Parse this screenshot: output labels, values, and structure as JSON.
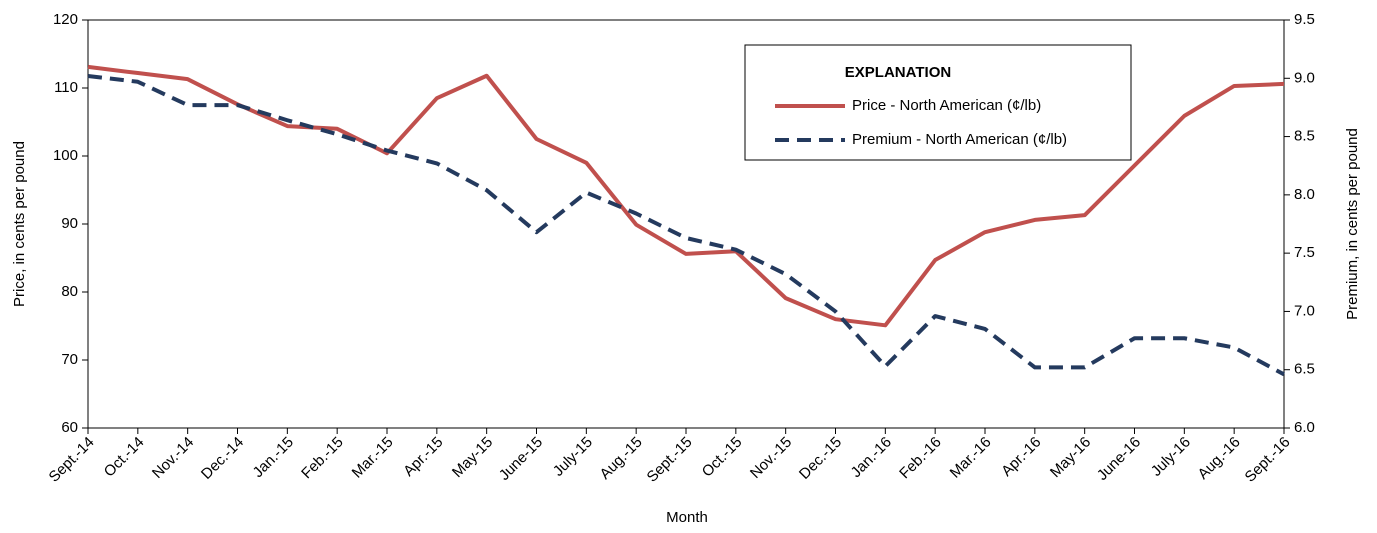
{
  "chart_data": {
    "type": "line",
    "x_label": "Month",
    "y_label": "Price, in cents per pound",
    "y2_label": "Premium, in cents per pound",
    "legend_title": "EXPLANATION",
    "legend": "upper right",
    "categories": [
      "Sept.-14",
      "Oct.-14",
      "Nov.-14",
      "Dec.-14",
      "Jan.-15",
      "Feb.-15",
      "Mar.-15",
      "Apr.-15",
      "May-15",
      "June-15",
      "July-15",
      "Aug.-15",
      "Sept.-15",
      "Oct.-15",
      "Nov.-15",
      "Dec.-15",
      "Jan.-16",
      "Feb.-16",
      "Mar.-16",
      "Apr.-16",
      "May-16",
      "June-16",
      "July-16",
      "Aug.-16",
      "Sept.-16"
    ],
    "series": [
      {
        "name": "Price - North American (¢/lb)",
        "color": "#c0504d",
        "dash": false,
        "values": [
          113.1,
          112.2,
          111.3,
          107.6,
          104.4,
          104.0,
          100.4,
          108.5,
          111.8,
          102.5,
          99.0,
          89.9,
          85.6,
          86.0,
          79.1,
          76.0,
          75.1,
          84.7,
          88.8,
          90.6,
          91.3,
          98.6,
          105.9,
          110.3,
          110.6
        ]
      },
      {
        "name": "Premium - North American (¢/lb)",
        "color": "#243a5e",
        "dash": true,
        "axis": "y2",
        "values": [
          9.02,
          8.97,
          8.77,
          8.77,
          8.64,
          8.52,
          8.38,
          8.27,
          8.04,
          7.68,
          8.02,
          7.84,
          7.63,
          7.53,
          7.32,
          7.0,
          6.53,
          6.96,
          6.85,
          6.52,
          6.52,
          6.77,
          6.77,
          6.69,
          6.46
        ]
      }
    ],
    "ylim": [
      60,
      120
    ],
    "yticks": [
      60,
      70,
      80,
      90,
      100,
      110,
      120
    ],
    "y2lim": [
      6.0,
      9.5
    ],
    "y2ticks": [
      {
        "value": 6,
        "label": "6.0"
      },
      6.5,
      {
        "value": 7,
        "label": "7.0"
      },
      7.5,
      {
        "value": 8,
        "label": "8.0"
      },
      8.5,
      {
        "value": 9,
        "label": "9.0"
      },
      9.5
    ],
    "grid": false
  }
}
